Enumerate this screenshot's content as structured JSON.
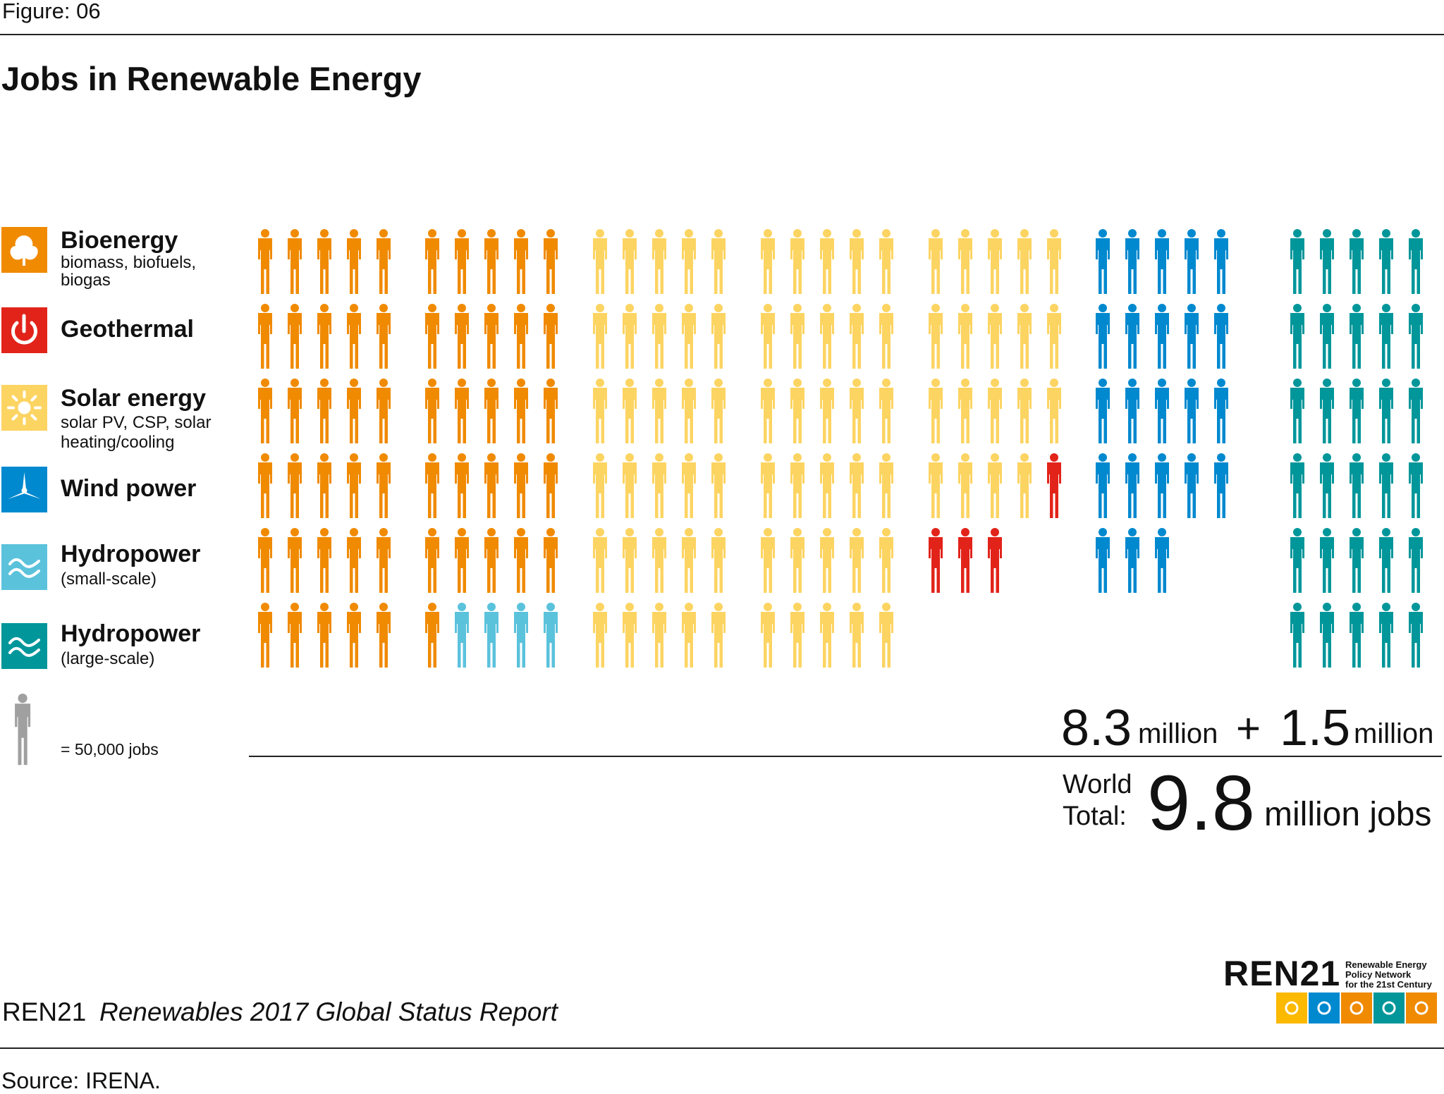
{
  "header": {
    "figure_label": "Figure: 06",
    "title": "Jobs in Renewable Energy"
  },
  "legend": {
    "items": [
      {
        "name": "Bioenergy",
        "sub": "biomass, biofuels,",
        "sub2": "biogas",
        "color": "#f08a00",
        "icon": "leaf-icon"
      },
      {
        "name": "Geothermal",
        "sub": "",
        "sub2": "",
        "color": "#e2231a",
        "icon": "power-icon"
      },
      {
        "name": "Solar energy",
        "sub": "solar PV, CSP, solar",
        "sub2": "heating/cooling",
        "color": "#fcd462",
        "icon": "sun-icon"
      },
      {
        "name": "Wind power",
        "sub": "",
        "sub2": "",
        "color": "#0089cf",
        "icon": "turbine-icon"
      },
      {
        "name": "Hydropower",
        "sub": "(small-scale)",
        "sub2": "",
        "color": "#5bc2dc",
        "icon": "waves-icon"
      },
      {
        "name": "Hydropower",
        "sub": "(large-scale)",
        "sub2": "",
        "color": "#00969a",
        "icon": "waves-icon"
      }
    ],
    "unit_label": "= 50,000 jobs",
    "unit_icon_color": "#a0a0a0"
  },
  "chart_data": {
    "type": "pictogram",
    "unit_jobs_per_icon": 50000,
    "series": [
      {
        "name": "Bioenergy",
        "icons": 56,
        "color": "#f08a00"
      },
      {
        "name": "Hydropower",
        "icons": 4,
        "color": "#5bc2dc",
        "subtitle": "(small-scale)"
      },
      {
        "name": "Solar energy",
        "icons": 79,
        "color": "#fcd462"
      },
      {
        "name": "Geothermal",
        "icons": 4,
        "color": "#e2231a"
      },
      {
        "name": "Wind power",
        "icons": 23,
        "color": "#0089cf"
      },
      {
        "name": "Hydropower",
        "icons": 30,
        "color": "#00969a",
        "subtitle": "(large-scale)"
      }
    ],
    "grid_groups": [
      [
        {
          "s": 0,
          "n": 30
        }
      ],
      [
        {
          "s": 0,
          "n": 26
        },
        {
          "s": 1,
          "n": 4
        }
      ],
      [
        {
          "s": 2,
          "n": 30
        }
      ],
      [
        {
          "s": 2,
          "n": 30
        }
      ],
      [
        {
          "s": 2,
          "n": 19
        },
        {
          "s": 3,
          "n": 4
        }
      ],
      [
        {
          "s": 4,
          "n": 23
        }
      ],
      [
        {
          "s": 5,
          "n": 30
        }
      ]
    ],
    "totals": {
      "part_a": "8.3",
      "part_a_unit": "million",
      "plus": "+",
      "part_b": "1.5",
      "part_b_unit": "million",
      "world_label_1": "World",
      "world_label_2": "Total:",
      "total": "9.8",
      "total_unit": "million jobs"
    }
  },
  "footer": {
    "report_org": "REN21",
    "report_title": "Renewables 2017 Global Status Report",
    "source": "Source: IRENA.",
    "logo_text": "REN21",
    "logo_tagline": [
      "Renewable Energy",
      "Policy Network",
      "for the 21st Century"
    ],
    "logo_tile_colors": [
      "#fbb900",
      "#0089cf",
      "#f08a00",
      "#00969a",
      "#f08a00"
    ]
  }
}
